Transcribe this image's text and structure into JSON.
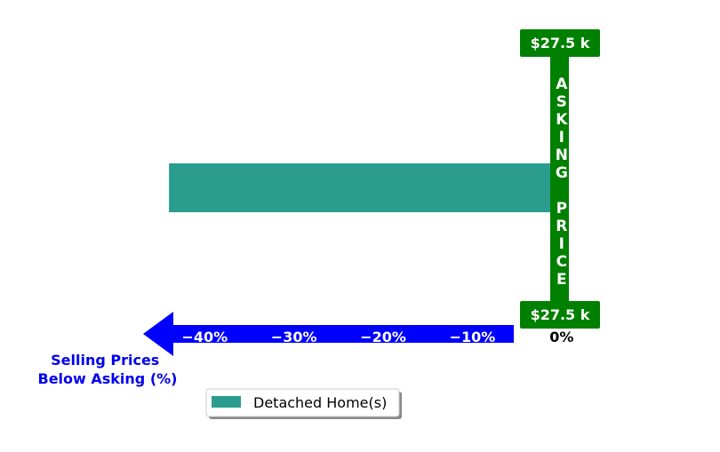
{
  "colors": {
    "bar": "#2a9d8f",
    "asking_price": "#008000",
    "axis_arrow": "#0000ff",
    "axis_title": "#0000ee",
    "text_white": "#ffffff",
    "text_black": "#000000"
  },
  "chart_data": {
    "type": "bar",
    "orientation": "horizontal",
    "categories": [
      "Detached Home(s)"
    ],
    "series": [
      {
        "name": "Detached Home(s)",
        "values": [
          -44
        ]
      }
    ],
    "xlim": [
      -47,
      5
    ],
    "xticks": [
      {
        "value": -40,
        "label": "−40%"
      },
      {
        "value": -30,
        "label": "−30%"
      },
      {
        "value": -20,
        "label": "−20%"
      },
      {
        "value": -10,
        "label": "−10%"
      },
      {
        "value": 0,
        "label": "0%"
      }
    ],
    "xlabel_lines": [
      "Selling Prices",
      "Below Asking (%)"
    ],
    "asking_price": {
      "top_label": "$27.5 k",
      "bottom_label": "$27.5 k",
      "vertical_text": "ASKING PRICE"
    },
    "legend": {
      "placement": "bottom-left",
      "entries": [
        "Detached Home(s)"
      ]
    },
    "grid": false
  }
}
